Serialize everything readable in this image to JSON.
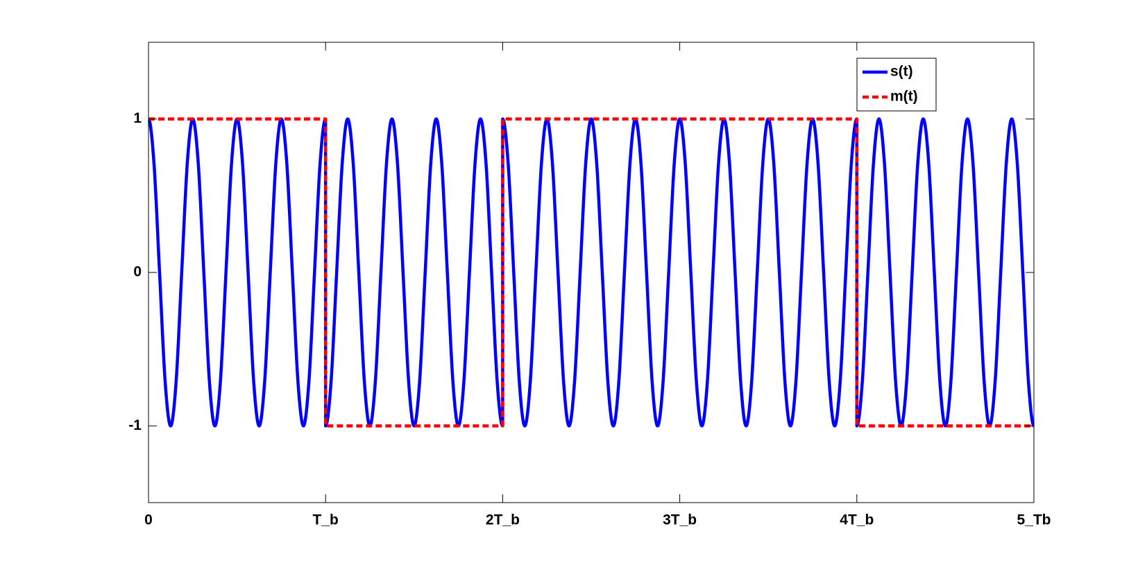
{
  "chart_data": {
    "type": "line",
    "x": [
      0,
      0.03125,
      0.0625,
      0.09375,
      0.125,
      0.15625,
      0.1875,
      0.21875,
      0.25,
      0.28125,
      0.3125,
      0.34375,
      0.375,
      0.40625,
      0.4375,
      0.46875,
      0.5,
      0.53125,
      0.5625,
      0.59375,
      0.625,
      0.65625,
      0.6875,
      0.71875,
      0.75,
      0.78125,
      0.8125,
      0.84375,
      0.875,
      0.90625,
      0.9375,
      0.96875,
      1,
      1,
      1.03125,
      1.0625,
      1.09375,
      1.125,
      1.15625,
      1.1875,
      1.21875,
      1.25,
      1.28125,
      1.3125,
      1.34375,
      1.375,
      1.40625,
      1.4375,
      1.46875,
      1.5,
      1.53125,
      1.5625,
      1.59375,
      1.625,
      1.65625,
      1.6875,
      1.71875,
      1.75,
      1.78125,
      1.8125,
      1.84375,
      1.875,
      1.90625,
      1.9375,
      1.96875,
      2,
      2,
      2.03125,
      2.0625,
      2.09375,
      2.125,
      2.15625,
      2.1875,
      2.21875,
      2.25,
      2.28125,
      2.3125,
      2.34375,
      2.375,
      2.40625,
      2.4375,
      2.46875,
      2.5,
      2.53125,
      2.5625,
      2.59375,
      2.625,
      2.65625,
      2.6875,
      2.71875,
      2.75,
      2.78125,
      2.8125,
      2.84375,
      2.875,
      2.90625,
      2.9375,
      2.96875,
      3,
      3.03125,
      3.0625,
      3.09375,
      3.125,
      3.15625,
      3.1875,
      3.21875,
      3.25,
      3.28125,
      3.3125,
      3.34375,
      3.375,
      3.40625,
      3.4375,
      3.46875,
      3.5,
      3.53125,
      3.5625,
      3.59375,
      3.625,
      3.65625,
      3.6875,
      3.71875,
      3.75,
      3.78125,
      3.8125,
      3.84375,
      3.875,
      3.90625,
      3.9375,
      3.96875,
      4,
      4,
      4.03125,
      4.0625,
      4.09375,
      4.125,
      4.15625,
      4.1875,
      4.21875,
      4.25,
      4.28125,
      4.3125,
      4.34375,
      4.375,
      4.40625,
      4.4375,
      4.46875,
      4.5,
      4.53125,
      4.5625,
      4.59375,
      4.625,
      4.65625,
      4.6875,
      4.71875,
      4.75,
      4.78125,
      4.8125,
      4.84375,
      4.875,
      4.90625,
      4.9375,
      4.96875,
      5
    ],
    "series": [
      {
        "name": "s(t)",
        "color": "#0000ff",
        "linestyle": "solid",
        "values": [
          1,
          0.707,
          0,
          -0.707,
          -1,
          -0.707,
          0,
          0.707,
          1,
          0.707,
          0,
          -0.707,
          -1,
          -0.707,
          0,
          0.707,
          1,
          0.707,
          0,
          -0.707,
          -1,
          -0.707,
          0,
          0.707,
          1,
          0.707,
          0,
          -0.707,
          -1,
          -0.707,
          0,
          0.707,
          1,
          -1,
          -0.707,
          0,
          0.707,
          1,
          0.707,
          0,
          -0.707,
          -1,
          -0.707,
          0,
          0.707,
          1,
          0.707,
          0,
          -0.707,
          -1,
          -0.707,
          0,
          0.707,
          1,
          0.707,
          0,
          -0.707,
          -1,
          -0.707,
          0,
          0.707,
          1,
          0.707,
          0,
          -0.707,
          -1,
          1,
          0.707,
          0,
          -0.707,
          -1,
          -0.707,
          0,
          0.707,
          1,
          0.707,
          0,
          -0.707,
          -1,
          -0.707,
          0,
          0.707,
          1,
          0.707,
          0,
          -0.707,
          -1,
          -0.707,
          0,
          0.707,
          1,
          0.707,
          0,
          -0.707,
          -1,
          -0.707,
          0,
          0.707,
          1,
          0.707,
          0,
          -0.707,
          -1,
          -0.707,
          0,
          0.707,
          1,
          0.707,
          0,
          -0.707,
          -1,
          -0.707,
          0,
          0.707,
          1,
          0.707,
          0,
          -0.707,
          -1,
          -0.707,
          0,
          0.707,
          1,
          0.707,
          0,
          -0.707,
          -1,
          -0.707,
          0,
          0.707,
          1,
          -1,
          -0.707,
          0,
          0.707,
          1,
          0.707,
          0,
          -0.707,
          -1,
          -0.707,
          0,
          0.707,
          1,
          0.707,
          0,
          -0.707,
          -1,
          -0.707,
          0,
          0.707,
          1,
          0.707,
          0,
          -0.707,
          -1,
          -0.707,
          0,
          0.707,
          1,
          0.707,
          0,
          -0.707,
          -1
        ]
      },
      {
        "name": "m(t)",
        "color": "#ff0000",
        "linestyle": "dashed",
        "values": [
          1,
          1,
          1,
          1,
          1,
          1,
          1,
          1,
          1,
          1,
          1,
          1,
          1,
          1,
          1,
          1,
          1,
          1,
          1,
          1,
          1,
          1,
          1,
          1,
          1,
          1,
          1,
          1,
          1,
          1,
          1,
          1,
          1,
          -1,
          -1,
          -1,
          -1,
          -1,
          -1,
          -1,
          -1,
          -1,
          -1,
          -1,
          -1,
          -1,
          -1,
          -1,
          -1,
          -1,
          -1,
          -1,
          -1,
          -1,
          -1,
          -1,
          -1,
          -1,
          -1,
          -1,
          -1,
          -1,
          -1,
          -1,
          -1,
          -1,
          1,
          1,
          1,
          1,
          1,
          1,
          1,
          1,
          1,
          1,
          1,
          1,
          1,
          1,
          1,
          1,
          1,
          1,
          1,
          1,
          1,
          1,
          1,
          1,
          1,
          1,
          1,
          1,
          1,
          1,
          1,
          1,
          1,
          1,
          1,
          1,
          1,
          1,
          1,
          1,
          1,
          1,
          1,
          1,
          1,
          1,
          1,
          1,
          1,
          1,
          1,
          1,
          1,
          1,
          1,
          1,
          1,
          1,
          1,
          1,
          1,
          1,
          1,
          1,
          1,
          -1,
          -1,
          -1,
          -1,
          -1,
          -1,
          -1,
          -1,
          -1,
          -1,
          -1,
          -1,
          -1,
          -1,
          -1,
          -1,
          -1,
          -1,
          -1,
          -1,
          -1,
          -1,
          -1,
          -1,
          -1,
          -1,
          -1,
          -1,
          -1,
          -1,
          -1,
          -1,
          -1
        ]
      }
    ],
    "xlim": [
      0,
      5
    ],
    "xticks": [
      0,
      {
        "value": 1,
        "label": "T_b"
      },
      {
        "value": 2,
        "label": "2T_b"
      },
      {
        "value": 3,
        "label": "3T_b"
      },
      {
        "value": 4,
        "label": "4T_b"
      },
      {
        "value": 5,
        "label": "5_Tb"
      }
    ],
    "ylim": [
      -1.5,
      1.5
    ],
    "yticks": [
      -1,
      0,
      1
    ],
    "grid": false,
    "legend": "upper right"
  }
}
